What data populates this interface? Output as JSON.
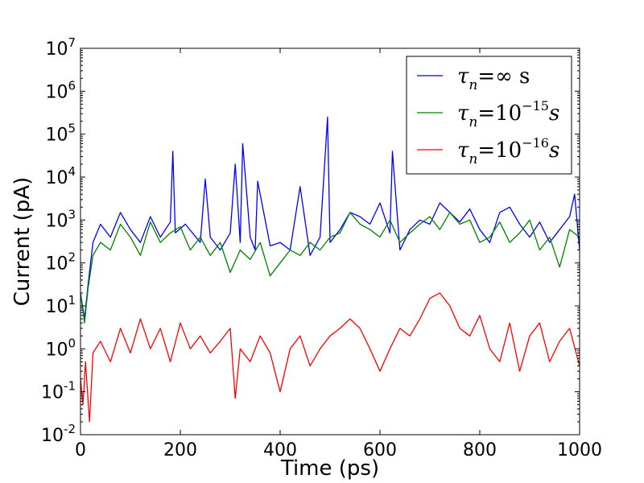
{
  "chart_data": {
    "type": "line",
    "xlabel": "Time (ps)",
    "ylabel": "Current (pA)",
    "xlim": [
      0,
      1000
    ],
    "ylim": [
      0.01,
      10000000
    ],
    "yscale": "log",
    "grid": false,
    "legend_position": "top-right",
    "x_ticks": [
      {
        "value": 0,
        "label": "0"
      },
      {
        "value": 200,
        "label": "200"
      },
      {
        "value": 400,
        "label": "400"
      },
      {
        "value": 600,
        "label": "600"
      },
      {
        "value": 800,
        "label": "800"
      },
      {
        "value": 1000,
        "label": "1000"
      }
    ],
    "y_ticks": [
      {
        "value": 0.01,
        "base": "10",
        "exp": "-2"
      },
      {
        "value": 0.1,
        "base": "10",
        "exp": "-1"
      },
      {
        "value": 1,
        "base": "10",
        "exp": "0"
      },
      {
        "value": 10,
        "base": "10",
        "exp": "1"
      },
      {
        "value": 100,
        "base": "10",
        "exp": "2"
      },
      {
        "value": 1000,
        "base": "10",
        "exp": "3"
      },
      {
        "value": 10000,
        "base": "10",
        "exp": "4"
      },
      {
        "value": 100000,
        "base": "10",
        "exp": "5"
      },
      {
        "value": 1000000,
        "base": "10",
        "exp": "6"
      },
      {
        "value": 10000000,
        "base": "10",
        "exp": "7"
      }
    ],
    "series": [
      {
        "name": "τn = ∞ s",
        "label_main": "τ",
        "label_sub": "n",
        "label_rest": "=∞ s",
        "label_sup": "",
        "label_tail": "",
        "color": "#0000ff",
        "x": [
          0,
          8,
          15,
          25,
          40,
          60,
          80,
          100,
          120,
          140,
          160,
          180,
          185,
          190,
          210,
          240,
          250,
          260,
          280,
          300,
          310,
          320,
          325,
          340,
          350,
          355,
          380,
          400,
          420,
          440,
          460,
          480,
          495,
          500,
          520,
          540,
          560,
          580,
          600,
          620,
          625,
          640,
          660,
          680,
          700,
          720,
          740,
          760,
          780,
          800,
          820,
          840,
          860,
          880,
          900,
          920,
          940,
          960,
          980,
          990,
          1000
        ],
        "values": [
          20,
          5,
          30,
          300,
          800,
          400,
          1500,
          600,
          300,
          1200,
          400,
          900,
          40000,
          500,
          800,
          300,
          9000,
          400,
          200,
          500,
          20000,
          300,
          60000,
          400,
          200,
          8000,
          250,
          300,
          200,
          6000,
          150,
          400,
          250000,
          300,
          600,
          1500,
          1200,
          800,
          2500,
          500,
          40000,
          200,
          600,
          1000,
          800,
          2500,
          1500,
          900,
          1800,
          600,
          300,
          1500,
          2000,
          800,
          400,
          900,
          300,
          600,
          1200,
          4000,
          200
        ]
      },
      {
        "name": "τn = 10^-15 s",
        "label_main": "τ",
        "label_sub": "n",
        "label_rest": "=10",
        "label_sup": "−15",
        "label_tail": "s",
        "color": "#008000",
        "x": [
          0,
          8,
          15,
          25,
          40,
          60,
          80,
          100,
          120,
          140,
          160,
          180,
          200,
          220,
          240,
          260,
          280,
          300,
          320,
          340,
          360,
          380,
          400,
          420,
          440,
          460,
          480,
          500,
          520,
          540,
          560,
          580,
          600,
          620,
          640,
          660,
          680,
          700,
          720,
          740,
          760,
          780,
          800,
          820,
          840,
          860,
          880,
          900,
          920,
          940,
          960,
          980,
          1000
        ],
        "values": [
          20,
          4,
          25,
          150,
          300,
          200,
          800,
          400,
          150,
          900,
          300,
          500,
          700,
          200,
          400,
          150,
          300,
          60,
          200,
          120,
          300,
          50,
          100,
          200,
          150,
          300,
          200,
          400,
          500,
          1500,
          800,
          600,
          400,
          1000,
          300,
          500,
          800,
          1200,
          600,
          1500,
          800,
          1000,
          300,
          400,
          900,
          300,
          500,
          1000,
          200,
          400,
          80,
          600,
          400
        ]
      },
      {
        "name": "τn = 10^-16 s",
        "label_main": "τ",
        "label_sub": "n",
        "label_rest": "=10",
        "label_sup": "−16",
        "label_tail": "s",
        "color": "#ff0000",
        "x": [
          0,
          5,
          10,
          18,
          25,
          40,
          60,
          80,
          100,
          120,
          140,
          160,
          180,
          200,
          220,
          240,
          260,
          280,
          300,
          310,
          320,
          340,
          360,
          380,
          400,
          420,
          440,
          460,
          480,
          500,
          520,
          540,
          560,
          580,
          600,
          620,
          640,
          660,
          680,
          700,
          720,
          740,
          760,
          780,
          800,
          820,
          840,
          860,
          880,
          900,
          920,
          940,
          960,
          980,
          1000
        ],
        "values": [
          0.2,
          0.05,
          0.5,
          0.02,
          0.8,
          1.5,
          0.5,
          3,
          0.8,
          5,
          1,
          3,
          0.5,
          4,
          1,
          2,
          0.8,
          1.5,
          3,
          0.07,
          1,
          0.5,
          2,
          0.8,
          0.1,
          1,
          2,
          0.4,
          1,
          2,
          3,
          5,
          3,
          1,
          0.3,
          1,
          3,
          2,
          5,
          15,
          20,
          10,
          3,
          2,
          6,
          1,
          0.5,
          4,
          0.3,
          2,
          4,
          0.5,
          1.5,
          3,
          0.4
        ]
      }
    ]
  }
}
